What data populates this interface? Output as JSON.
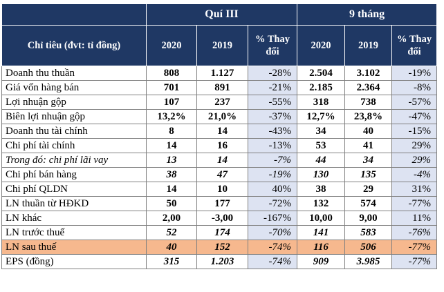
{
  "header": {
    "q3_label": "Quí III",
    "nine_months_label": "9 tháng",
    "indicator_label": "Chỉ tiêu (đvt: tỉ đồng)",
    "y2020": "2020",
    "y2019": "2019",
    "pct_change": "% Thay đổi"
  },
  "rows": [
    {
      "label": "Doanh thu thuần",
      "q3_2020": "808",
      "q3_2019": "1.127",
      "q3_pct": "-28%",
      "m9_2020": "2.504",
      "m9_2019": "3.102",
      "m9_pct": "-19%"
    },
    {
      "label": "Giá vốn hàng bán",
      "q3_2020": "701",
      "q3_2019": "891",
      "q3_pct": "-21%",
      "m9_2020": "2.185",
      "m9_2019": "2.364",
      "m9_pct": "-8%"
    },
    {
      "label": "Lợi nhuận gộp",
      "q3_2020": "107",
      "q3_2019": "237",
      "q3_pct": "-55%",
      "m9_2020": "318",
      "m9_2019": "738",
      "m9_pct": "-57%"
    },
    {
      "label": "Biên lợi nhuận gộp",
      "q3_2020": "13,2%",
      "q3_2019": "21,0%",
      "q3_pct": "-37%",
      "m9_2020": "12,7%",
      "m9_2019": "23,8%",
      "m9_pct": "-47%"
    },
    {
      "label": "Doanh thu tài chính",
      "q3_2020": "8",
      "q3_2019": "14",
      "q3_pct": "-43%",
      "m9_2020": "34",
      "m9_2019": "40",
      "m9_pct": "-15%"
    },
    {
      "label": "Chi phí tài chính",
      "q3_2020": "14",
      "q3_2019": "16",
      "q3_pct": "-13%",
      "m9_2020": "53",
      "m9_2019": "41",
      "m9_pct": "29%"
    },
    {
      "label": "Trong đó: chi phí lãi vay",
      "q3_2020": "13",
      "q3_2019": "14",
      "q3_pct": "-7%",
      "m9_2020": "44",
      "m9_2019": "34",
      "m9_pct": "29%"
    },
    {
      "label": "Chi phí bán hàng",
      "q3_2020": "38",
      "q3_2019": "47",
      "q3_pct": "-19%",
      "m9_2020": "130",
      "m9_2019": "135",
      "m9_pct": "-4%"
    },
    {
      "label": "Chi phí QLDN",
      "q3_2020": "14",
      "q3_2019": "10",
      "q3_pct": "40%",
      "m9_2020": "38",
      "m9_2019": "29",
      "m9_pct": "31%"
    },
    {
      "label": "LN thuần từ HĐKD",
      "q3_2020": "50",
      "q3_2019": "177",
      "q3_pct": "-72%",
      "m9_2020": "132",
      "m9_2019": "574",
      "m9_pct": "-77%"
    },
    {
      "label": "LN khác",
      "q3_2020": "2,00",
      "q3_2019": "-3,00",
      "q3_pct": "-167%",
      "m9_2020": "10,00",
      "m9_2019": "9,00",
      "m9_pct": "11%"
    },
    {
      "label": "LN trước thuế",
      "q3_2020": "52",
      "q3_2019": "174",
      "q3_pct": "-70%",
      "m9_2020": "141",
      "m9_2019": "583",
      "m9_pct": "-76%"
    },
    {
      "label": "LN sau thuế",
      "q3_2020": "40",
      "q3_2019": "152",
      "q3_pct": "-74%",
      "m9_2020": "116",
      "m9_2019": "506",
      "m9_pct": "-77%"
    },
    {
      "label": "EPS (đồng)",
      "q3_2020": "315",
      "q3_2019": "1.203",
      "q3_pct": "-74%",
      "m9_2020": "909",
      "m9_2019": "3.985",
      "m9_pct": "-77%"
    }
  ],
  "colors": {
    "header_bg": "#1f3864",
    "pct_bg": "#dde3f2",
    "highlight_bg": "#f6b88e"
  }
}
